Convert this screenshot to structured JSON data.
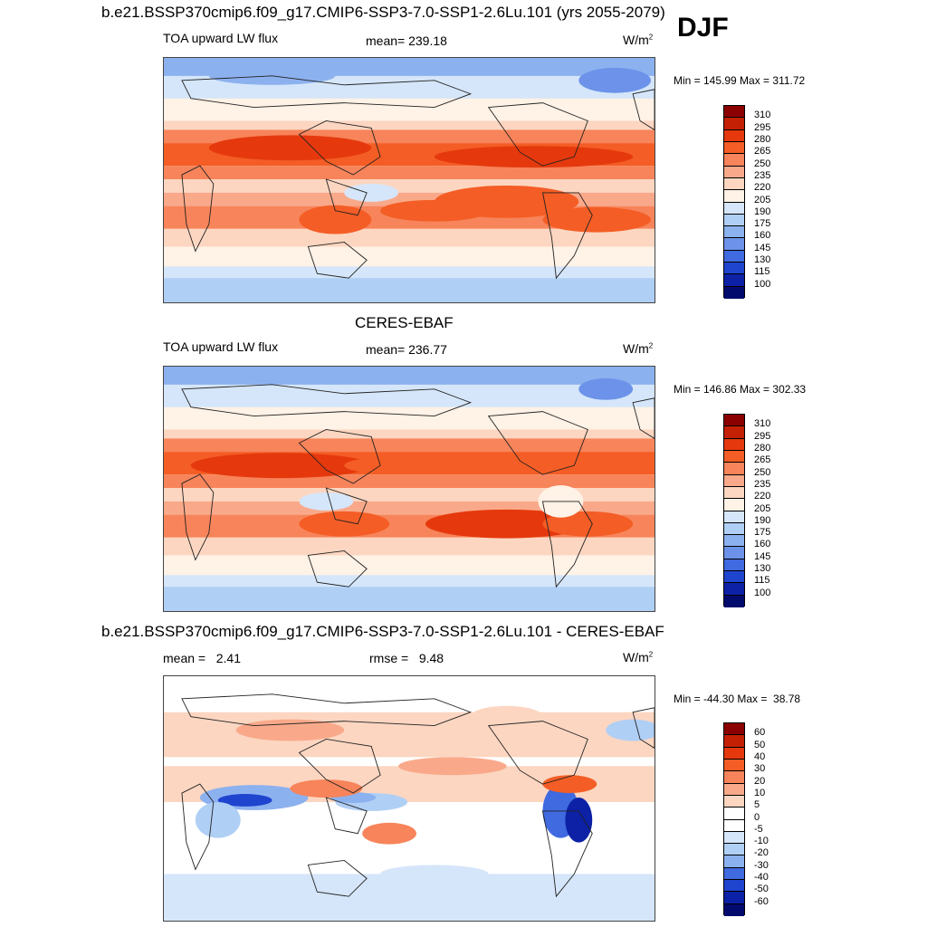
{
  "header": {
    "case_title": "b.e21.BSSP370cmip6.f09_g17.CMIP6-SSP3-7.0-SSP1-2.6Lu.101 (yrs 2055-2079)",
    "season": "DJF"
  },
  "panels": [
    {
      "variable": "TOA upward LW flux",
      "mean_text": "mean= 239.18",
      "units_base": "W/m",
      "units_exp": "2",
      "minmax": "Min = 145.99 Max = 311.72"
    },
    {
      "title": "CERES-EBAF",
      "variable": "TOA upward LW flux",
      "mean_text": "mean= 236.77",
      "units_base": "W/m",
      "units_exp": "2",
      "minmax": "Min = 146.86 Max = 302.33"
    },
    {
      "title": "b.e21.BSSP370cmip6.f09_g17.CMIP6-SSP3-7.0-SSP1-2.6Lu.101 - CERES-EBAF",
      "mean_text": "mean =   2.41",
      "rmse_text": "rmse =   9.48",
      "units_base": "W/m",
      "units_exp": "2",
      "minmax": "Min = -44.30 Max =  38.78"
    }
  ],
  "chart_data": [
    {
      "type": "heatmap",
      "title": "TOA upward LW flux",
      "units": "W/m2",
      "mean": 239.18,
      "min": 145.99,
      "max": 311.72,
      "colorbar_levels": [
        310,
        295,
        280,
        265,
        250,
        235,
        220,
        205,
        190,
        175,
        160,
        145,
        130,
        115,
        100
      ],
      "colorbar_colors": [
        "#8b0000",
        "#c42004",
        "#e5390d",
        "#f45d25",
        "#f7845a",
        "#f9a98a",
        "#fcd6c1",
        "#fff2e6",
        "#d5e6fa",
        "#b0cff5",
        "#8cb1ef",
        "#6c93e9",
        "#3f6ae0",
        "#1f45cf",
        "#0c21a6",
        "#030a6e"
      ]
    },
    {
      "type": "heatmap",
      "title": "TOA upward LW flux",
      "units": "W/m2",
      "mean": 236.77,
      "min": 146.86,
      "max": 302.33,
      "colorbar_levels": [
        310,
        295,
        280,
        265,
        250,
        235,
        220,
        205,
        190,
        175,
        160,
        145,
        130,
        115,
        100
      ],
      "colorbar_colors": [
        "#8b0000",
        "#c42004",
        "#e5390d",
        "#f45d25",
        "#f7845a",
        "#f9a98a",
        "#fcd6c1",
        "#fff2e6",
        "#d5e6fa",
        "#b0cff5",
        "#8cb1ef",
        "#6c93e9",
        "#3f6ae0",
        "#1f45cf",
        "#0c21a6",
        "#030a6e"
      ]
    },
    {
      "type": "heatmap",
      "units": "W/m2",
      "mean": 2.41,
      "rmse": 9.48,
      "min": -44.3,
      "max": 38.78,
      "colorbar_levels": [
        60,
        50,
        40,
        30,
        20,
        10,
        5,
        0,
        -5,
        -10,
        -20,
        -30,
        -40,
        -50,
        -60
      ],
      "colorbar_colors": [
        "#8b0000",
        "#c42004",
        "#e5390d",
        "#f45d25",
        "#f7845a",
        "#f9a98a",
        "#fcd6c1",
        "#ffffff",
        "#ffffff",
        "#d5e6fa",
        "#b0cff5",
        "#8cb1ef",
        "#3f6ae0",
        "#1f45cf",
        "#0c21a6",
        "#030a6e"
      ]
    }
  ]
}
